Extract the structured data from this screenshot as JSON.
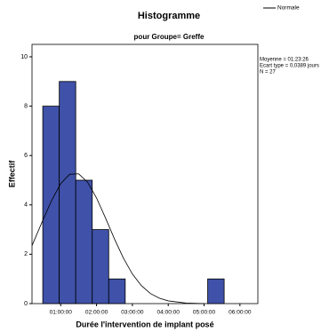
{
  "chart_data": {
    "type": "histogram",
    "title": "Histogramme",
    "subtitle": "pour Groupe= Greffe",
    "xlabel": "Durée l'intervention de implant posé",
    "ylabel": "Effectif",
    "bins": [
      0.5,
      0.96,
      1.42,
      1.88,
      2.34,
      2.8,
      3.26,
      3.72,
      4.18,
      4.64,
      5.1,
      5.56
    ],
    "values": [
      8,
      9,
      5,
      3,
      1,
      0,
      0,
      0,
      0,
      0,
      1
    ],
    "color": "#3f51a8",
    "xlim": [
      0.2,
      6.5
    ],
    "xticks": [
      {
        "value": 1,
        "label": "01:00:00"
      },
      {
        "value": 2,
        "label": "02:00:00"
      },
      {
        "value": 3,
        "label": "03:00:00"
      },
      {
        "value": 4,
        "label": "04:00:00"
      },
      {
        "value": 5,
        "label": "05:00:00"
      },
      {
        "value": 6,
        "label": "06:00:00"
      }
    ],
    "ylim": [
      0,
      10
    ],
    "yticks": [
      0,
      2,
      4,
      6,
      8,
      10
    ],
    "series": [
      {
        "name": "Normale",
        "color": "#000000",
        "x": [
          0.2,
          0.5,
          0.75,
          1.0,
          1.25,
          1.5,
          1.75,
          2.0,
          2.25,
          2.5,
          2.75,
          3.0,
          3.25,
          3.5,
          3.75,
          4.0,
          4.5,
          5.0
        ],
        "values": [
          2.35,
          3.37,
          4.19,
          4.86,
          5.24,
          5.26,
          4.92,
          4.28,
          3.47,
          2.62,
          1.84,
          1.2,
          0.73,
          0.41,
          0.22,
          0.11,
          0.02,
          0.0
        ]
      }
    ],
    "stats": [
      "Moyenne = 01:23:26",
      "Ecart type = 0,0389 jours",
      "N = 27"
    ],
    "legend": "top-right"
  }
}
